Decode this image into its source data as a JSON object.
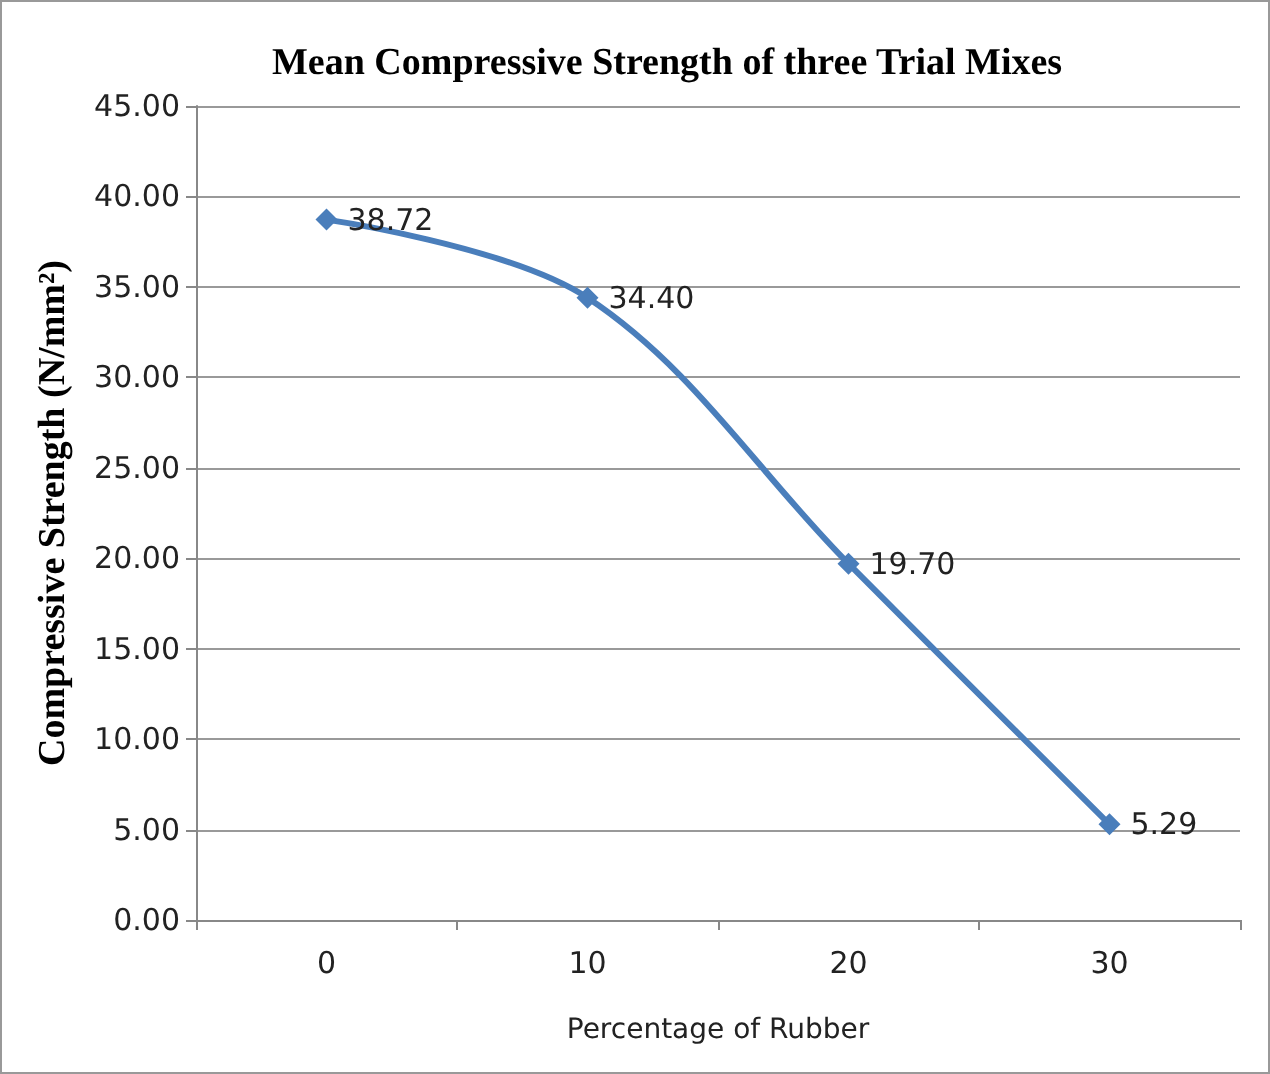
{
  "chart_data": {
    "type": "line",
    "title": "Mean Compressive Strength of three Trial Mixes",
    "xlabel": "Percentage of Rubber",
    "ylabel": "Compressive Strength (N/mm²)",
    "categories": [
      "0",
      "10",
      "20",
      "30"
    ],
    "series": [
      {
        "color": "#4a7ebb",
        "values": [
          38.72,
          34.4,
          19.7,
          5.29
        ],
        "value_labels": [
          "38.72",
          "34.40",
          "19.70",
          "5.29"
        ]
      }
    ],
    "ylim": [
      0,
      45
    ],
    "yticks": [
      {
        "value": 0,
        "label": "0.00"
      },
      {
        "value": 5,
        "label": "5.00"
      },
      {
        "value": 10,
        "label": "10.00"
      },
      {
        "value": 15,
        "label": "15.00"
      },
      {
        "value": 20,
        "label": "20.00"
      },
      {
        "value": 25,
        "label": "25.00"
      },
      {
        "value": 30,
        "label": "30.00"
      },
      {
        "value": 35,
        "label": "35.00"
      },
      {
        "value": 40,
        "label": "40.00"
      },
      {
        "value": 45,
        "label": "45.00"
      }
    ],
    "grid": "y",
    "marker": "diamond",
    "line_style": "solid"
  }
}
